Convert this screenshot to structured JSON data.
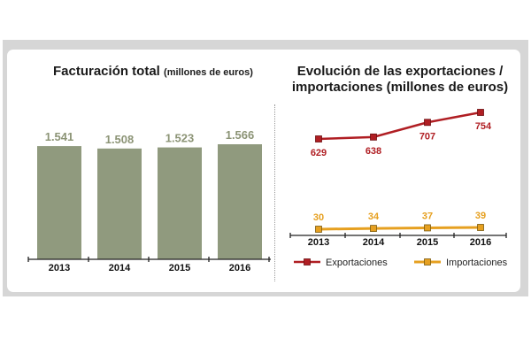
{
  "charts": {
    "left_title": "Facturación total",
    "left_subtitle": "(millones de euros)",
    "right_title_line1": "Evolución de las exportaciones /",
    "right_title_line2": "importaciones (millones de euros)"
  },
  "colors": {
    "bar": "#909a7e",
    "bar_label": "#8c9476",
    "export_line": "#b01e23",
    "import_line": "#e6a020",
    "panel_bg": "#ffffff",
    "frame_bg": "#d6d6d6"
  },
  "chart_data": [
    {
      "type": "bar",
      "title": "Facturación total (millones de euros)",
      "categories": [
        "2013",
        "2014",
        "2015",
        "2016"
      ],
      "values": [
        1541,
        1508,
        1523,
        1566
      ],
      "value_labels": [
        "1.541",
        "1.508",
        "1.523",
        "1.566"
      ],
      "ylim": [
        0,
        1566
      ],
      "grid": false
    },
    {
      "type": "line",
      "title": "Evolución de las exportaciones / importaciones (millones de euros)",
      "categories": [
        "2013",
        "2014",
        "2015",
        "2016"
      ],
      "series": [
        {
          "name": "Exportaciones",
          "values": [
            629,
            638,
            707,
            754
          ],
          "labels": [
            "629",
            "638",
            "707",
            "754"
          ]
        },
        {
          "name": "Importaciones",
          "values": [
            30,
            34,
            37,
            39
          ],
          "labels": [
            "30",
            "34",
            "37",
            "39"
          ]
        }
      ],
      "legend": "bottom",
      "grid": false
    }
  ]
}
